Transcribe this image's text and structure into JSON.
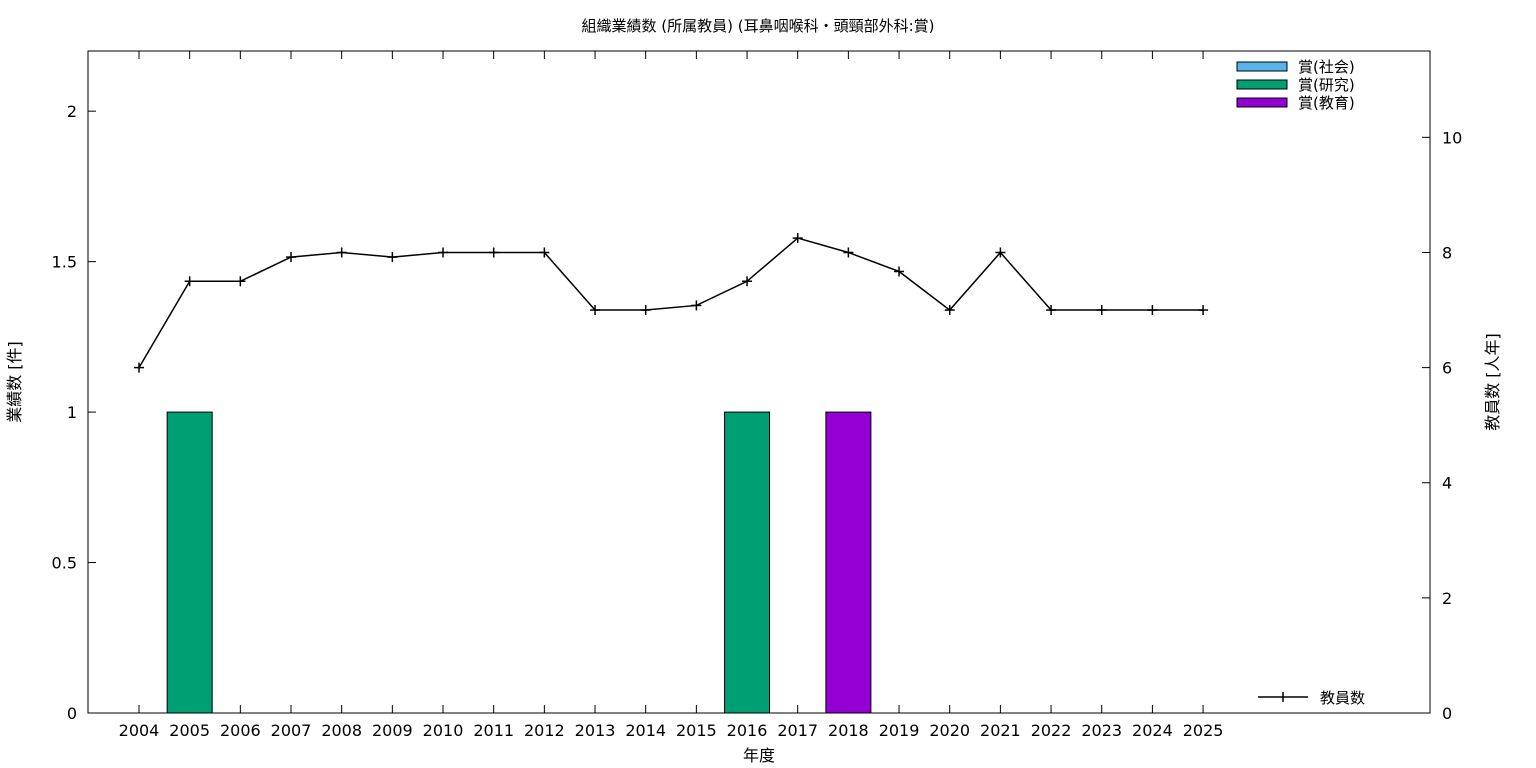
{
  "chart_data": {
    "type": "bar",
    "title": "組織業績数 (所属教員) (耳鼻咽喉科・頭頸部外科:賞)",
    "xlabel": "年度",
    "ylabel": "業績数 [件]",
    "y2label": "教員数 [人年]",
    "categories": [
      "2004",
      "2005",
      "2006",
      "2007",
      "2008",
      "2009",
      "2010",
      "2011",
      "2012",
      "2013",
      "2014",
      "2015",
      "2016",
      "2017",
      "2018",
      "2019",
      "2020",
      "2021",
      "2022",
      "2023",
      "2024",
      "2025"
    ],
    "ylim": [
      0,
      2.2
    ],
    "yticks": [
      0,
      0.5,
      1,
      1.5,
      2
    ],
    "y2lim": [
      0,
      11.5
    ],
    "y2ticks": [
      0,
      2,
      4,
      6,
      8,
      10
    ],
    "series": [
      {
        "name": "賞(社会)",
        "color": "#56b4e9",
        "values": [
          0,
          0,
          0,
          0,
          0,
          0,
          0,
          0,
          0,
          0,
          0,
          0,
          0,
          0,
          0,
          0,
          0,
          0,
          0,
          0,
          0,
          0
        ]
      },
      {
        "name": "賞(研究)",
        "color": "#009e73",
        "values": [
          0,
          1,
          0,
          0,
          0,
          0,
          0,
          0,
          0,
          0,
          0,
          0,
          1,
          0,
          0,
          0,
          0,
          0,
          0,
          0,
          0,
          0
        ]
      },
      {
        "name": "賞(教育)",
        "color": "#9400d3",
        "values": [
          0,
          0,
          0,
          0,
          0,
          0,
          0,
          0,
          0,
          0,
          0,
          0,
          0,
          0,
          1,
          0,
          0,
          0,
          0,
          0,
          0,
          0
        ]
      }
    ],
    "line_series": {
      "name": "教員数",
      "axis": "y2",
      "color": "#000000",
      "values": [
        6,
        7.5,
        7.5,
        7.92,
        8,
        7.92,
        8,
        8,
        8,
        7,
        7,
        7.08,
        7.5,
        8.25,
        8,
        7.67,
        7,
        8,
        7,
        7,
        7,
        7
      ]
    },
    "legend_placement": "top-right",
    "line_legend_placement": "bottom-right",
    "grid": false
  }
}
